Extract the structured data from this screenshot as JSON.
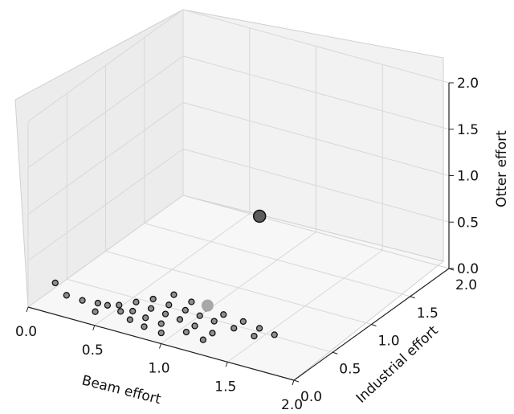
{
  "chart_data": {
    "type": "scatter3d",
    "xlabel": "Beam effort",
    "ylabel": "Industrial effort",
    "zlabel": "Otter effort",
    "xlim": [
      0,
      2
    ],
    "ylim": [
      0,
      2
    ],
    "zlim": [
      0,
      2
    ],
    "xticks": [
      "0.0",
      "0.5",
      "1.0",
      "1.5",
      "2.0"
    ],
    "yticks": [
      "0.0",
      "0.5",
      "1.0",
      "1.5",
      "2.0"
    ],
    "zticks": [
      "0.0",
      "0.5",
      "1.0",
      "1.5",
      "2.0"
    ],
    "grid": true,
    "colors": {
      "pane": "#ececec",
      "grid": "#d8d8d8",
      "point_small": "#8e8e8e",
      "point_large": "#5c5c5c",
      "point_light": "#a8a8a8"
    },
    "series": [
      {
        "marker": "small",
        "points": [
          [
            0.0,
            0.35,
            0.05
          ],
          [
            0.12,
            0.29,
            0.0
          ],
          [
            0.28,
            0.22,
            0.05
          ],
          [
            0.4,
            0.18,
            0.0
          ],
          [
            0.35,
            0.3,
            0.0
          ],
          [
            0.44,
            0.27,
            0.03
          ],
          [
            0.55,
            0.25,
            0.02
          ],
          [
            0.65,
            0.2,
            0.0
          ],
          [
            0.78,
            0.16,
            0.0
          ],
          [
            0.92,
            0.14,
            0.0
          ],
          [
            0.48,
            0.35,
            0.0
          ],
          [
            0.6,
            0.32,
            0.0
          ],
          [
            0.72,
            0.28,
            0.0
          ],
          [
            0.85,
            0.26,
            0.0
          ],
          [
            1.05,
            0.24,
            0.0
          ],
          [
            1.2,
            0.2,
            0.0
          ],
          [
            0.55,
            0.45,
            0.0
          ],
          [
            0.68,
            0.42,
            0.0
          ],
          [
            0.8,
            0.4,
            0.0
          ],
          [
            0.92,
            0.38,
            0.0
          ],
          [
            1.05,
            0.35,
            0.0
          ],
          [
            1.2,
            0.32,
            0.0
          ],
          [
            0.62,
            0.55,
            0.0
          ],
          [
            0.75,
            0.53,
            0.0
          ],
          [
            0.88,
            0.52,
            0.0
          ],
          [
            1.0,
            0.5,
            0.0
          ],
          [
            1.12,
            0.48,
            0.0
          ],
          [
            1.28,
            0.46,
            0.0
          ],
          [
            1.45,
            0.43,
            0.0
          ],
          [
            0.7,
            0.68,
            0.0
          ],
          [
            0.85,
            0.65,
            0.0
          ],
          [
            0.98,
            0.62,
            0.0
          ],
          [
            1.12,
            0.6,
            0.0
          ],
          [
            1.28,
            0.58,
            0.0
          ],
          [
            1.42,
            0.55,
            0.0
          ],
          [
            1.55,
            0.52,
            0.0
          ]
        ]
      },
      {
        "marker": "large",
        "points": [
          [
            1.1,
            1.1,
            0.75
          ]
        ]
      },
      {
        "marker": "light",
        "points": [
          [
            1.0,
            0.6,
            0.05
          ]
        ]
      }
    ]
  }
}
